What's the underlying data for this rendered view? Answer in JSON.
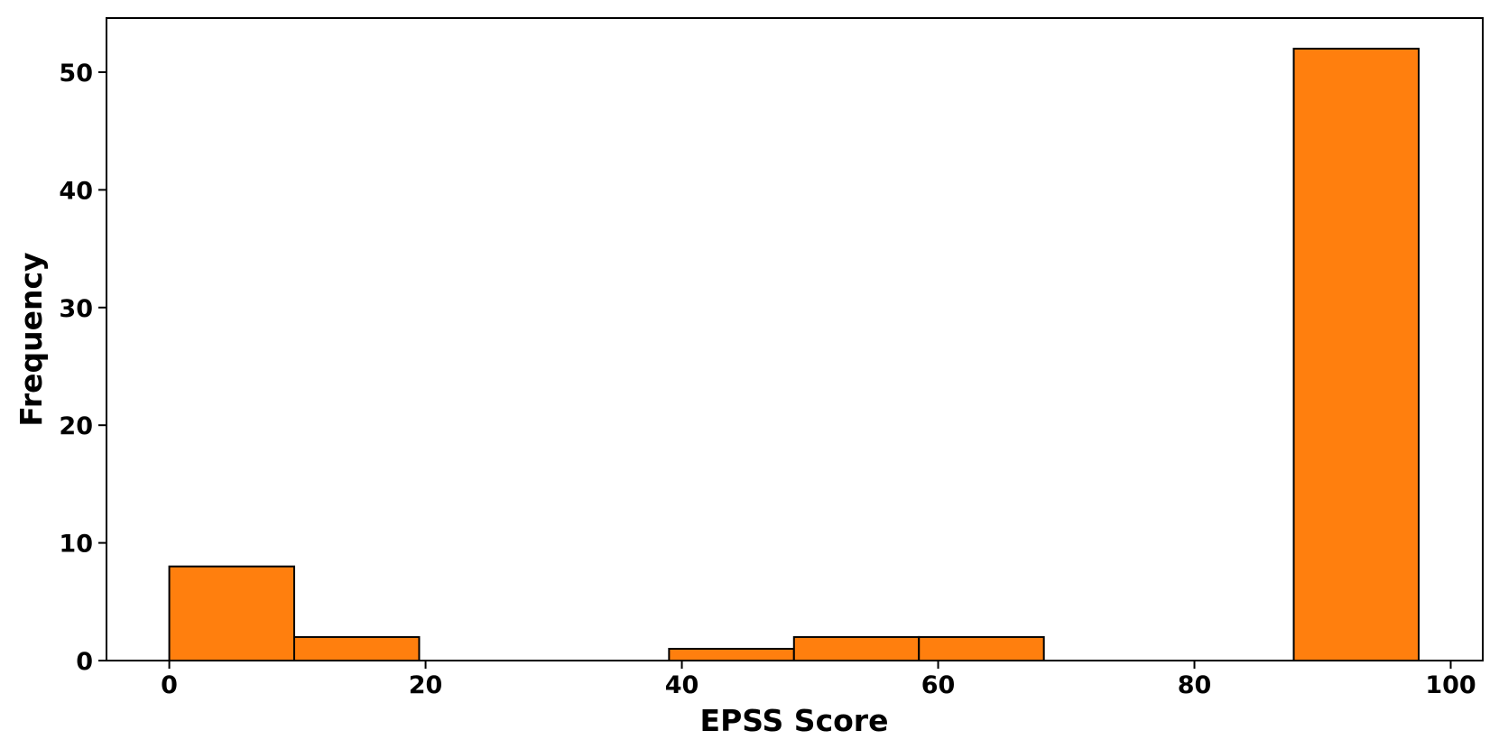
{
  "chart_data": {
    "type": "bar",
    "title": "",
    "xlabel": "EPSS Score",
    "ylabel": "Frequency",
    "xlim": [
      -4.9,
      102.5
    ],
    "ylim": [
      0,
      54.6
    ],
    "xticks": [
      0,
      20,
      40,
      60,
      80,
      100
    ],
    "yticks": [
      0,
      10,
      20,
      30,
      40,
      50
    ],
    "bins": [
      {
        "start": 0.0,
        "end": 9.75,
        "value": 8
      },
      {
        "start": 9.75,
        "end": 19.5,
        "value": 2
      },
      {
        "start": 39.0,
        "end": 48.75,
        "value": 1
      },
      {
        "start": 48.75,
        "end": 58.5,
        "value": 2
      },
      {
        "start": 58.5,
        "end": 68.25,
        "value": 2
      },
      {
        "start": 87.75,
        "end": 97.5,
        "value": 52
      }
    ],
    "grid": false,
    "colors": {
      "bar_fill": "#ff7f0e",
      "bar_edge": "#000000"
    }
  }
}
